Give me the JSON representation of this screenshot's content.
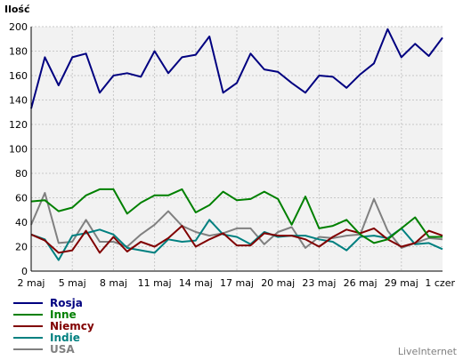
{
  "chart_data": {
    "type": "line",
    "ylabel": "Ilość",
    "ylim": [
      0,
      200
    ],
    "yticks": [
      0,
      20,
      40,
      60,
      80,
      100,
      120,
      140,
      160,
      180,
      200
    ],
    "x_count": 31,
    "xtick_labels": [
      {
        "index": 0,
        "label": "2 maj"
      },
      {
        "index": 3,
        "label": "5 maj"
      },
      {
        "index": 6,
        "label": "8 maj"
      },
      {
        "index": 9,
        "label": "11 maj"
      },
      {
        "index": 12,
        "label": "14 maj"
      },
      {
        "index": 15,
        "label": "17 maj"
      },
      {
        "index": 18,
        "label": "20 maj"
      },
      {
        "index": 21,
        "label": "23 maj"
      },
      {
        "index": 24,
        "label": "26 maj"
      },
      {
        "index": 27,
        "label": "29 maj"
      },
      {
        "index": 30,
        "label": "1 czer"
      }
    ],
    "grid": true,
    "legend_position": "bottom-left",
    "series": [
      {
        "name": "Rosja",
        "color": "#000080",
        "values": [
          133,
          175,
          152,
          175,
          178,
          146,
          160,
          162,
          159,
          180,
          162,
          175,
          177,
          192,
          146,
          154,
          178,
          165,
          163,
          154,
          146,
          160,
          159,
          150,
          161,
          170,
          198,
          175,
          186,
          176,
          191
        ]
      },
      {
        "name": "Inne",
        "color": "#008000",
        "values": [
          57,
          58,
          49,
          52,
          62,
          67,
          67,
          47,
          56,
          62,
          62,
          67,
          48,
          54,
          65,
          58,
          59,
          65,
          59,
          38,
          61,
          35,
          37,
          42,
          30,
          23,
          26,
          35,
          44,
          28,
          28
        ]
      },
      {
        "name": "Niemcy",
        "color": "#800000",
        "values": [
          30,
          25,
          15,
          17,
          33,
          15,
          28,
          16,
          24,
          20,
          27,
          37,
          20,
          26,
          31,
          21,
          21,
          31,
          29,
          29,
          26,
          20,
          28,
          34,
          31,
          35,
          26,
          20,
          23,
          33,
          29
        ]
      },
      {
        "name": "Indie",
        "color": "#008080",
        "values": [
          30,
          26,
          9,
          29,
          31,
          34,
          30,
          19,
          17,
          15,
          26,
          24,
          25,
          42,
          30,
          28,
          22,
          32,
          28,
          29,
          29,
          26,
          24,
          17,
          28,
          29,
          27,
          35,
          22,
          23,
          18
        ]
      },
      {
        "name": "USA",
        "color": "#808080",
        "values": [
          38,
          64,
          23,
          24,
          42,
          24,
          24,
          20,
          30,
          38,
          49,
          37,
          32,
          29,
          31,
          35,
          35,
          22,
          32,
          36,
          19,
          28,
          27,
          29,
          30,
          59,
          33,
          19,
          23,
          27,
          26
        ]
      }
    ]
  },
  "footer": {
    "credit": "LiveInternet"
  }
}
